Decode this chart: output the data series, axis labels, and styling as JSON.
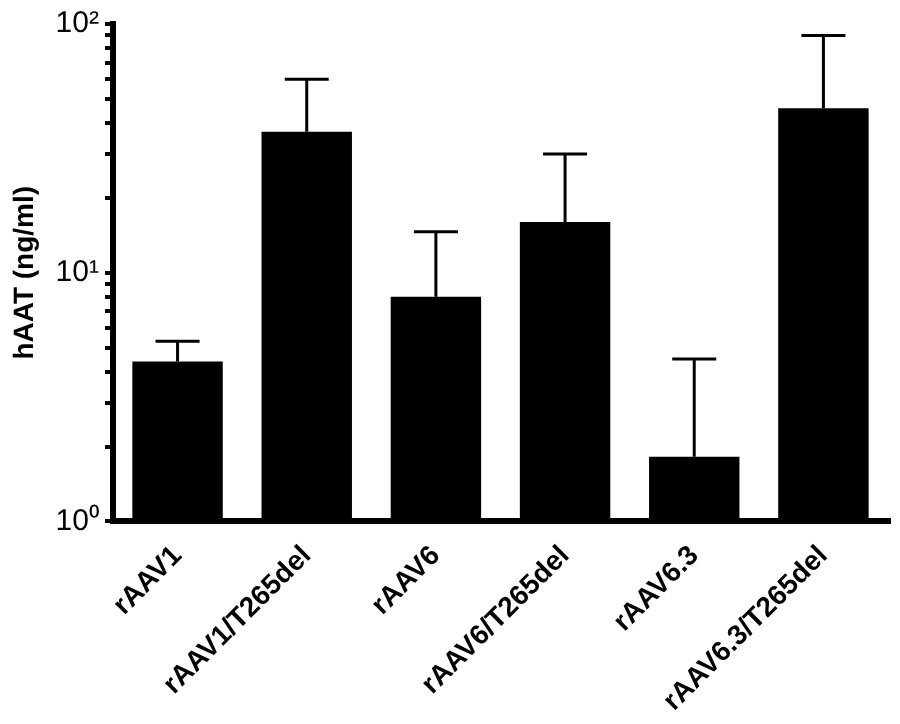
{
  "chart_data": {
    "type": "bar",
    "ylabel": "hAAT (ng/ml)",
    "categories": [
      "rAAV1",
      "rAAV1/T265del",
      "rAAV6",
      "rAAV6/T265del",
      "rAAV6.3",
      "rAAV6.3/T265del"
    ],
    "values": [
      4.4,
      36.9,
      8.0,
      16.0,
      1.82,
      45.8
    ],
    "errors": [
      [
        4.4,
        5.3
      ],
      [
        36.9,
        60
      ],
      [
        8.0,
        14.6
      ],
      [
        16.0,
        30
      ],
      [
        1.82,
        4.5
      ],
      [
        45.8,
        90
      ]
    ],
    "color": "#000000",
    "log": true,
    "ylim": [
      1,
      100
    ],
    "yticks": [
      {
        "value": 1,
        "label": "10⁰"
      },
      {
        "value": 2,
        "label": null
      },
      {
        "value": 3,
        "label": null
      },
      {
        "value": 4,
        "label": null
      },
      {
        "value": 5,
        "label": null
      },
      {
        "value": 6,
        "label": null
      },
      {
        "value": 7,
        "label": null
      },
      {
        "value": 8,
        "label": null
      },
      {
        "value": 9,
        "label": null
      },
      {
        "value": 10,
        "label": "10¹"
      },
      {
        "value": 20,
        "label": null
      },
      {
        "value": 30,
        "label": null
      },
      {
        "value": 40,
        "label": null
      },
      {
        "value": 50,
        "label": null
      },
      {
        "value": 60,
        "label": null
      },
      {
        "value": 70,
        "label": null
      },
      {
        "value": 80,
        "label": null
      },
      {
        "value": 90,
        "label": null
      },
      {
        "value": 100,
        "label": "10²"
      }
    ],
    "grid": false,
    "legend": false
  }
}
